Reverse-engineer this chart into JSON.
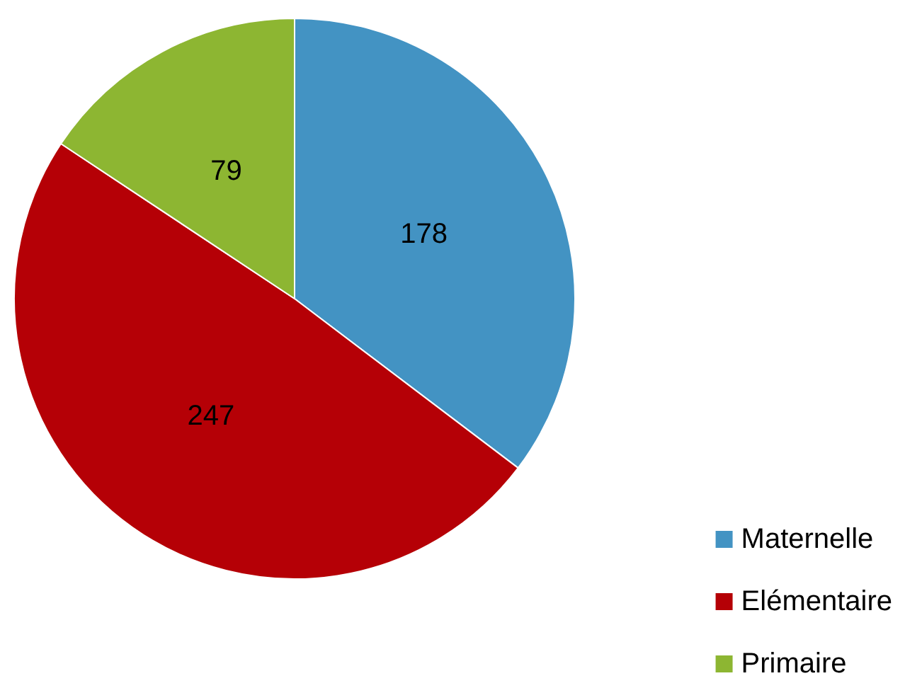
{
  "chart_data": {
    "type": "pie",
    "categories": [
      "Maternelle",
      "Elémentaire",
      "Primaire"
    ],
    "values": [
      178,
      247,
      79
    ],
    "colors": [
      "#4393c3",
      "#b50006",
      "#8db632"
    ],
    "data_labels": true,
    "legend": "bottom right"
  }
}
